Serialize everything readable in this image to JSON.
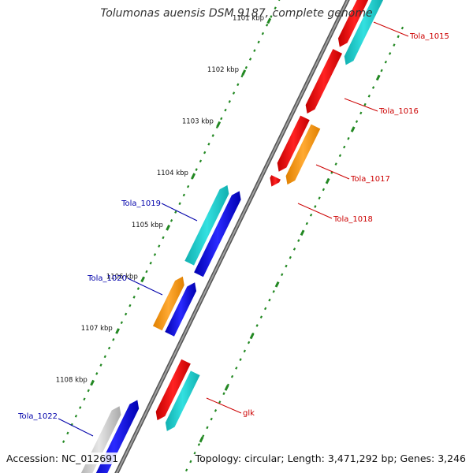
{
  "title": "Tolumonas auensis DSM 9187, complete genome",
  "accession": "Accession: NC_012691",
  "summary": "Topology: circular; Length: 3,471,292 bp; Genes: 3,246",
  "ticks": [
    "1101 kbp",
    "1102 kbp",
    "1103 kbp",
    "1104 kbp",
    "1105 kbp",
    "1106 kbp",
    "1107 kbp",
    "1108 kbp"
  ],
  "gene_labels": [
    {
      "text": "Tola_1015",
      "strand": "forward",
      "color": "#cc0000"
    },
    {
      "text": "Tola_1016",
      "strand": "forward",
      "color": "#cc0000"
    },
    {
      "text": "Tola_1017",
      "strand": "forward",
      "color": "#cc0000"
    },
    {
      "text": "Tola_1018",
      "strand": "forward",
      "color": "#cc0000"
    },
    {
      "text": "Tola_1019",
      "strand": "reverse",
      "color": "#0000aa"
    },
    {
      "text": "Tola_1020",
      "strand": "reverse",
      "color": "#0000aa"
    },
    {
      "text": "glk",
      "strand": "forward",
      "color": "#cc0000"
    },
    {
      "text": "Tola_1022",
      "strand": "reverse",
      "color": "#0000aa"
    }
  ],
  "colors": {
    "cds": "#ee1111",
    "rna": "#22cccc",
    "orange": "#ff9900",
    "blue": "#1111dd",
    "gray": "#cccccc",
    "backbone": "#888888",
    "tick": "#228822"
  }
}
